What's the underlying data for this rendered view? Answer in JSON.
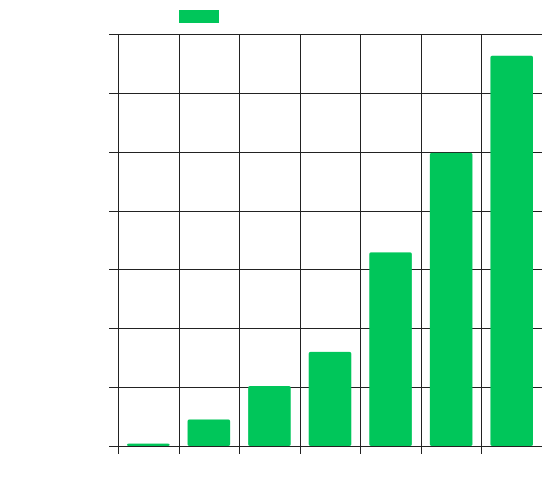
{
  "chart_data": {
    "type": "bar",
    "title": "",
    "xlabel": "",
    "ylabel": "",
    "categories": [
      "",
      "",
      "",
      "",
      "",
      "",
      ""
    ],
    "series": [
      {
        "values": [
          0.4,
          4.5,
          10.2,
          16.0,
          32.9,
          49.8,
          66.3
        ]
      }
    ],
    "ylim": [
      0,
      70
    ],
    "y_tick_count": 8,
    "grid": true,
    "legend_position": "top",
    "colors": {
      "bar": "#00c65a",
      "grid": "#222222",
      "background": "#ffffff"
    }
  }
}
